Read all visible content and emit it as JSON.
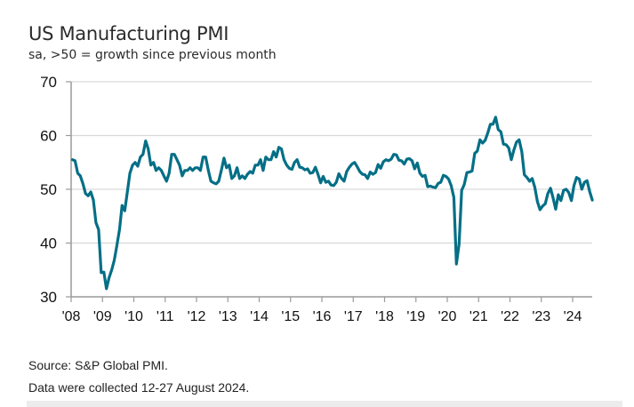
{
  "header": {
    "title": "US Manufacturing PMI",
    "subtitle": "sa, >50 = growth since previous month"
  },
  "footer": {
    "source": "Source: S&P Global PMI.",
    "collected": "Data were collected 12-27 August 2024."
  },
  "colors": {
    "line": "#046f86",
    "grid": "#d9d9d9",
    "axis": "#9a9a9a"
  },
  "chart_data": {
    "type": "line",
    "title": "US Manufacturing PMI",
    "subtitle": "sa, >50 = growth since previous month",
    "xlabel": "",
    "ylabel": "",
    "ylim": [
      30,
      70
    ],
    "yticks": [
      30,
      40,
      50,
      60,
      70
    ],
    "ytick_labels": [
      "30",
      "40",
      "50",
      "60",
      "70"
    ],
    "xtick_labels": [
      "'08",
      "'09",
      "'10",
      "'11",
      "'12",
      "'13",
      "'14",
      "'15",
      "'16",
      "'17",
      "'18",
      "'19",
      "'20",
      "'21",
      "'22",
      "'23",
      "'24"
    ],
    "x_start": "2008-01",
    "x_end": "2024-08",
    "frequency": "monthly",
    "grid": true,
    "legend": "none",
    "series": [
      {
        "name": "US Manufacturing PMI",
        "values": [
          55.5,
          55.3,
          53.0,
          52.5,
          51.0,
          49.2,
          48.8,
          49.5,
          48.0,
          43.8,
          42.5,
          34.5,
          34.6,
          31.5,
          33.5,
          35.0,
          36.8,
          39.5,
          42.5,
          47.0,
          46.0,
          49.5,
          53.0,
          54.5,
          55.0,
          54.3,
          56.0,
          56.5,
          59.0,
          57.5,
          54.5,
          55.0,
          53.5,
          54.0,
          53.5,
          52.5,
          51.5,
          53.0,
          56.5,
          56.5,
          55.5,
          54.5,
          52.5,
          53.5,
          53.5,
          54.0,
          53.5,
          54.0,
          54.0,
          53.5,
          56.0,
          56.0,
          53.5,
          51.5,
          51.2,
          51.0,
          51.5,
          53.5,
          55.8,
          54.0,
          54.5,
          52.0,
          52.5,
          54.0,
          52.0,
          52.5,
          52.0,
          52.8,
          53.3,
          53.0,
          54.5,
          54.5,
          55.5,
          53.5,
          56.0,
          55.5,
          55.5,
          57.0,
          56.0,
          57.8,
          57.5,
          55.5,
          54.5,
          53.9,
          53.7,
          55.0,
          55.5,
          54.1,
          54.0,
          53.6,
          53.8,
          53.0,
          53.1,
          54.1,
          52.8,
          51.2,
          52.4,
          51.3,
          51.5,
          50.8,
          50.7,
          51.3,
          52.9,
          52.0,
          51.5,
          53.3,
          54.1,
          54.7,
          55.0,
          54.2,
          53.3,
          52.8,
          52.7,
          52.0,
          53.2,
          52.8,
          53.1,
          54.6,
          53.9,
          55.1,
          55.5,
          55.3,
          55.6,
          56.5,
          56.4,
          55.4,
          55.3,
          54.7,
          55.6,
          55.7,
          55.3,
          53.8,
          54.9,
          53.0,
          52.4,
          52.6,
          50.5,
          50.6,
          50.4,
          50.3,
          51.1,
          51.3,
          52.6,
          52.4,
          51.9,
          50.7,
          48.5,
          36.1,
          39.8,
          49.8,
          50.9,
          53.1,
          53.2,
          53.4,
          56.7,
          57.1,
          59.2,
          58.6,
          59.1,
          60.5,
          62.1,
          62.1,
          63.4,
          61.1,
          60.7,
          58.4,
          58.3,
          57.7,
          55.5,
          57.3,
          58.8,
          59.2,
          57.0,
          52.7,
          52.2,
          51.5,
          52.0,
          50.4,
          47.7,
          46.2,
          46.9,
          47.3,
          49.2,
          50.2,
          48.4,
          46.3,
          49.0,
          47.9,
          49.8,
          50.0,
          49.4,
          47.9,
          50.7,
          52.2,
          51.9,
          50.0,
          51.3,
          51.6,
          49.6,
          48.0
        ]
      }
    ]
  }
}
